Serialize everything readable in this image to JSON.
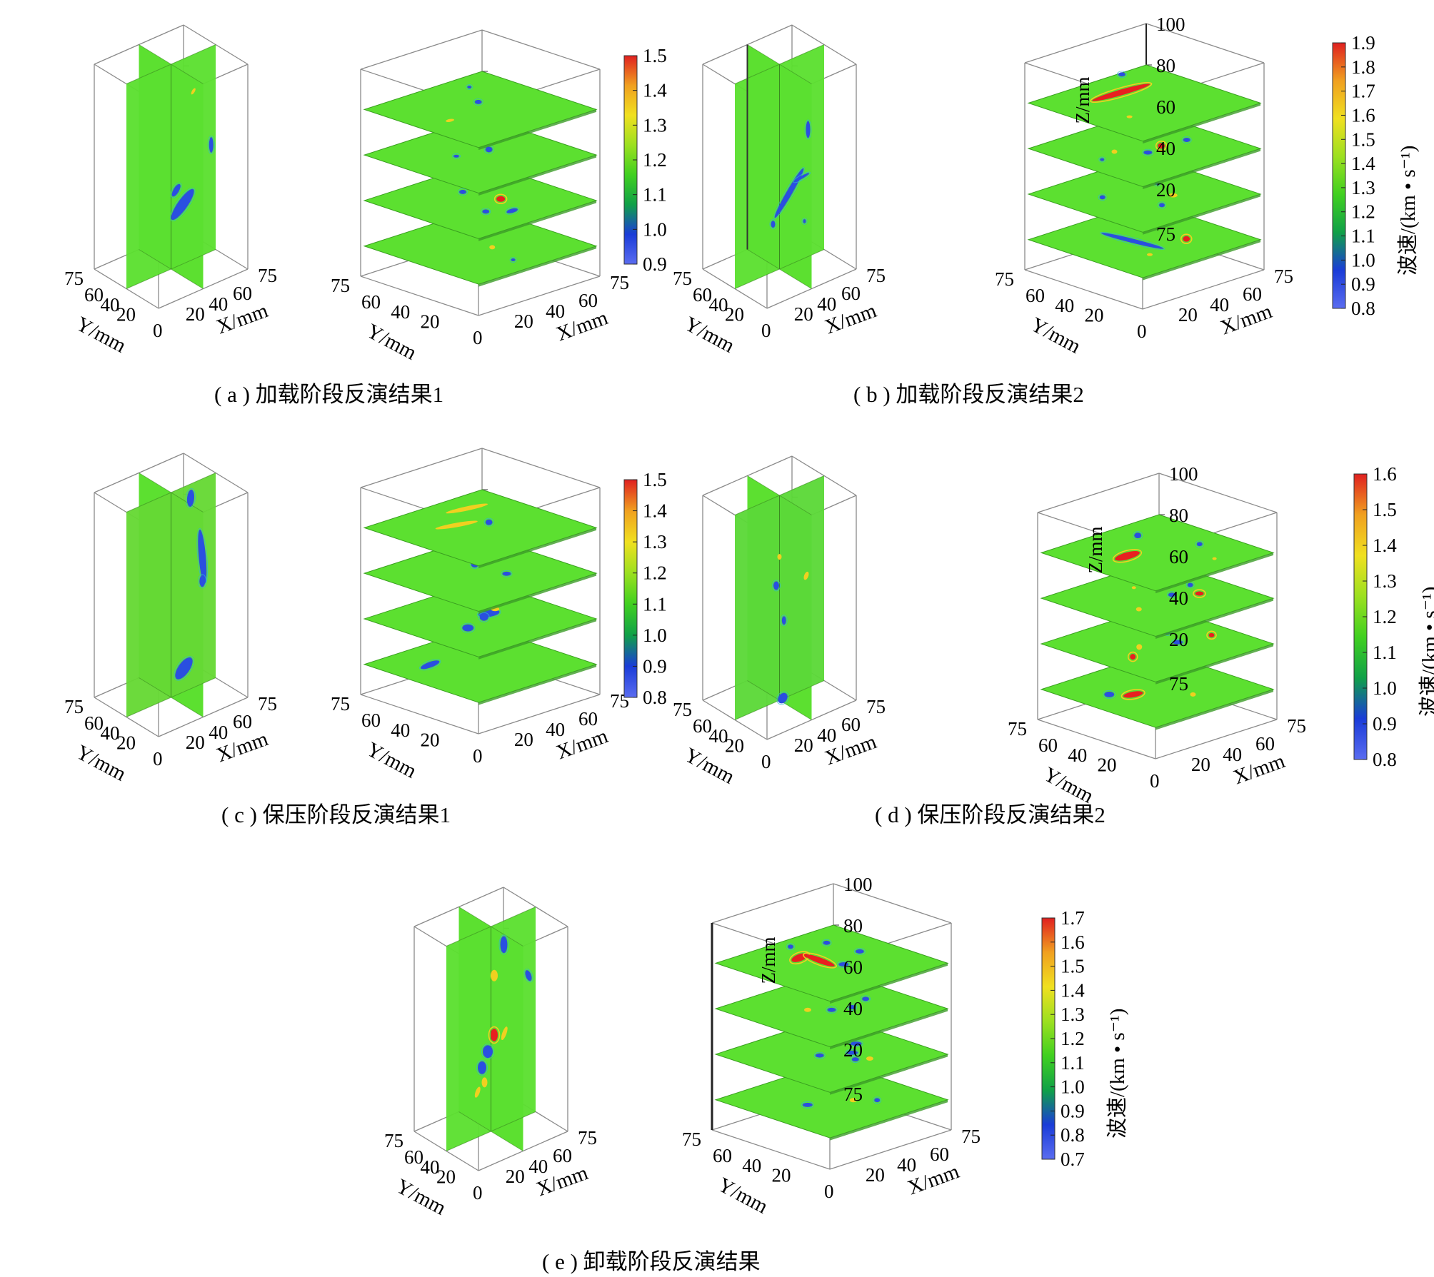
{
  "axis_labels": {
    "x": "X/mm",
    "y": "Y/mm",
    "z": "Z/mm",
    "cbar": "波速/(km • s⁻¹)"
  },
  "tick_labels": {
    "xy": [
      "0",
      "20",
      "40",
      "60",
      "75"
    ],
    "z": [
      "20",
      "40",
      "60",
      "80",
      "100"
    ]
  },
  "colorbar_ticks": {
    "a": [
      "0.9",
      "1.0",
      "1.1",
      "1.2",
      "1.3",
      "1.4",
      "1.5"
    ],
    "b": [
      "0.8",
      "0.9",
      "1.0",
      "1.1",
      "1.2",
      "1.3",
      "1.4",
      "1.5",
      "1.6",
      "1.7",
      "1.8",
      "1.9"
    ],
    "c": [
      "0.8",
      "0.9",
      "1.0",
      "1.1",
      "1.2",
      "1.3",
      "1.4",
      "1.5"
    ],
    "d": [
      "0.8",
      "0.9",
      "1.0",
      "1.1",
      "1.2",
      "1.3",
      "1.4",
      "1.5",
      "1.6"
    ],
    "e": [
      "0.7",
      "0.8",
      "0.9",
      "1.0",
      "1.1",
      "1.2",
      "1.3",
      "1.4",
      "1.5",
      "1.6",
      "1.7"
    ]
  },
  "captions": {
    "a": "( a ) 加载阶段反演结果1",
    "b": "( b ) 加载阶段反演结果2",
    "c": "( c ) 保压阶段反演结果1",
    "d": "( d ) 保压阶段反演结果2",
    "e": "( e ) 卸载阶段反演结果"
  },
  "colors": {
    "background_slice": "#5ce030",
    "low_velocity": "#2a4fe0",
    "high_velocity": "#e82020",
    "mid_velocity": "#f0d020",
    "colorbar": [
      "#5a6cf0",
      "#1a3cd8",
      "#10a048",
      "#40d020",
      "#9ce020",
      "#f0e020",
      "#f0a020",
      "#e02020"
    ]
  }
}
